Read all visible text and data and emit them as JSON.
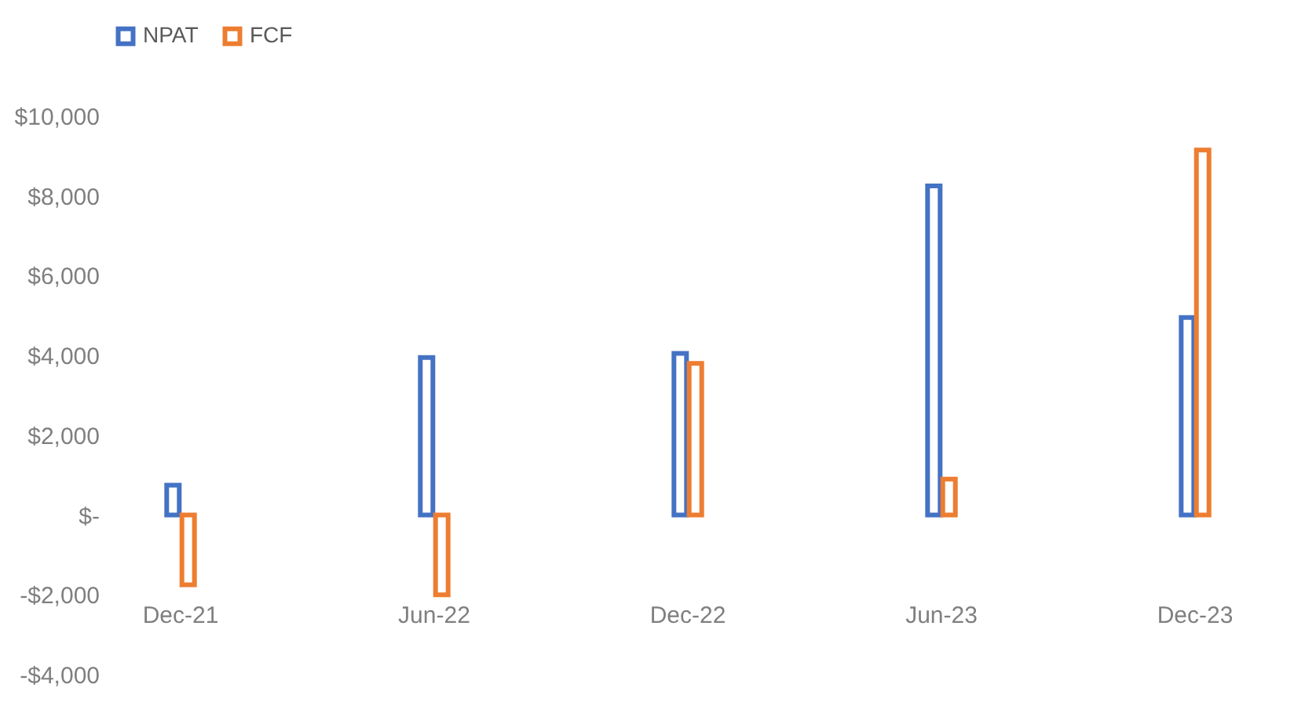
{
  "chart_data": {
    "type": "bar",
    "categories": [
      "Dec-21",
      "Jun-22",
      "Dec-22",
      "Jun-23",
      "Dec-23"
    ],
    "series": [
      {
        "name": "NPAT",
        "color": "#4472c4",
        "values": [
          750,
          3950,
          4050,
          8250,
          4950
        ]
      },
      {
        "name": "FCF",
        "color": "#ed7d31",
        "values": [
          -1750,
          -2000,
          3800,
          900,
          9150
        ]
      }
    ],
    "ylim": [
      -4000,
      10000
    ],
    "yticks": [
      {
        "value": -4000,
        "label": "-$4,000"
      },
      {
        "value": -2000,
        "label": "-$2,000"
      },
      {
        "value": 0,
        "label": "$-"
      },
      {
        "value": 2000,
        "label": "$2,000"
      },
      {
        "value": 4000,
        "label": "$4,000"
      },
      {
        "value": 6000,
        "label": "$6,000"
      },
      {
        "value": 8000,
        "label": "$8,000"
      },
      {
        "value": 10000,
        "label": "$10,000"
      }
    ],
    "legend": "top",
    "grid": false
  }
}
